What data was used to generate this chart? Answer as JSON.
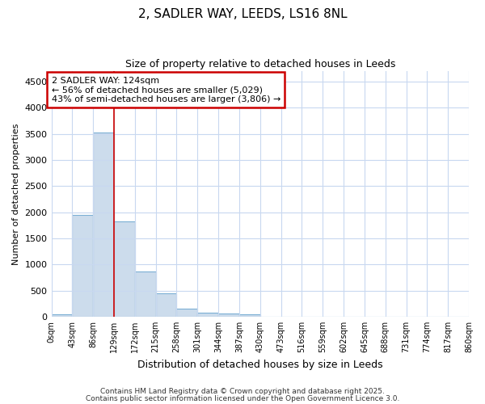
{
  "title1": "2, SADLER WAY, LEEDS, LS16 8NL",
  "title2": "Size of property relative to detached houses in Leeds",
  "xlabel": "Distribution of detached houses by size in Leeds",
  "ylabel": "Number of detached properties",
  "bar_values": [
    40,
    1950,
    3520,
    1820,
    860,
    450,
    160,
    80,
    55,
    45,
    0,
    0,
    0,
    0,
    0,
    0,
    0,
    0,
    0,
    0
  ],
  "bin_labels": [
    "0sqm",
    "43sqm",
    "86sqm",
    "129sqm",
    "172sqm",
    "215sqm",
    "258sqm",
    "301sqm",
    "344sqm",
    "387sqm",
    "430sqm",
    "473sqm",
    "516sqm",
    "559sqm",
    "602sqm",
    "645sqm",
    "688sqm",
    "731sqm",
    "774sqm",
    "817sqm",
    "860sqm"
  ],
  "bar_color": "#ccdcec",
  "bar_edge_color": "#7bafd4",
  "vline_x": 129,
  "vline_color": "#cc0000",
  "ylim": [
    0,
    4700
  ],
  "yticks": [
    0,
    500,
    1000,
    1500,
    2000,
    2500,
    3000,
    3500,
    4000,
    4500
  ],
  "annotation_text": "2 SADLER WAY: 124sqm\n← 56% of detached houses are smaller (5,029)\n43% of semi-detached houses are larger (3,806) →",
  "annotation_box_color": "#ffffff",
  "annotation_border_color": "#cc0000",
  "bg_color": "#ffffff",
  "plot_bg_color": "#ffffff",
  "grid_color": "#c8d8f0",
  "footnote1": "Contains HM Land Registry data © Crown copyright and database right 2025.",
  "footnote2": "Contains public sector information licensed under the Open Government Licence 3.0."
}
